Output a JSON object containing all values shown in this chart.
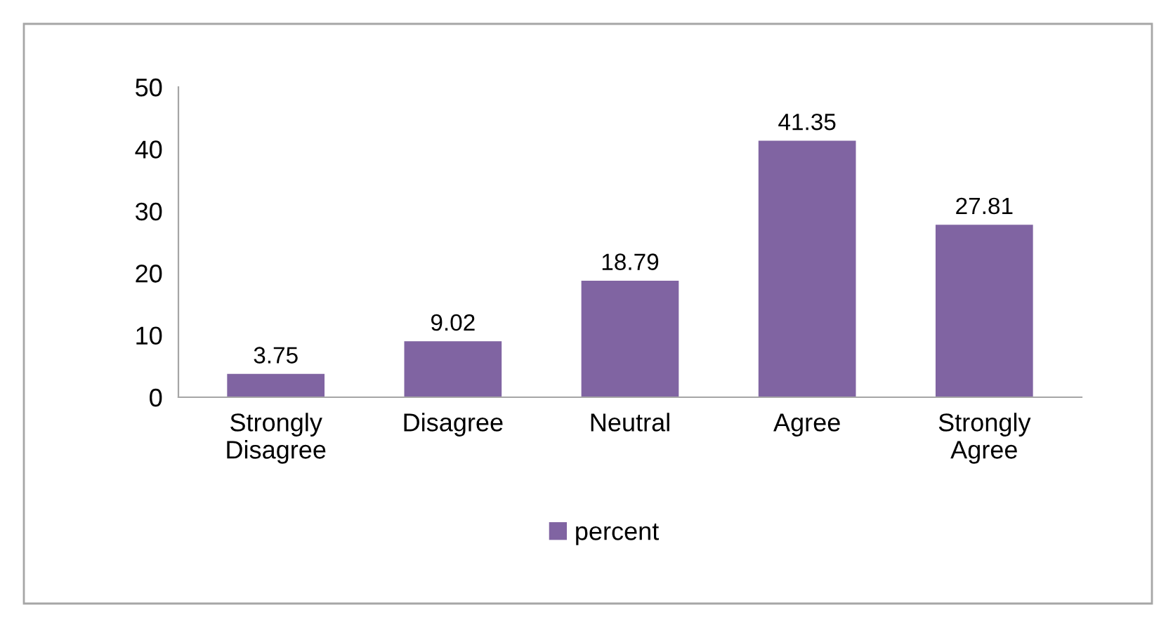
{
  "chart_data": {
    "type": "bar",
    "categories": [
      "Strongly Disagree",
      "Disagree",
      "Neutral",
      "Agree",
      "Strongly Agree"
    ],
    "series": [
      {
        "name": "percent",
        "color": "#8064a2",
        "values": [
          3.75,
          9.02,
          18.79,
          41.35,
          27.81
        ]
      }
    ],
    "ylim": [
      0,
      50
    ],
    "yticks": [
      0,
      10,
      20,
      30,
      40,
      50
    ],
    "data_labels": true,
    "legend": "bottom",
    "grid": false
  }
}
